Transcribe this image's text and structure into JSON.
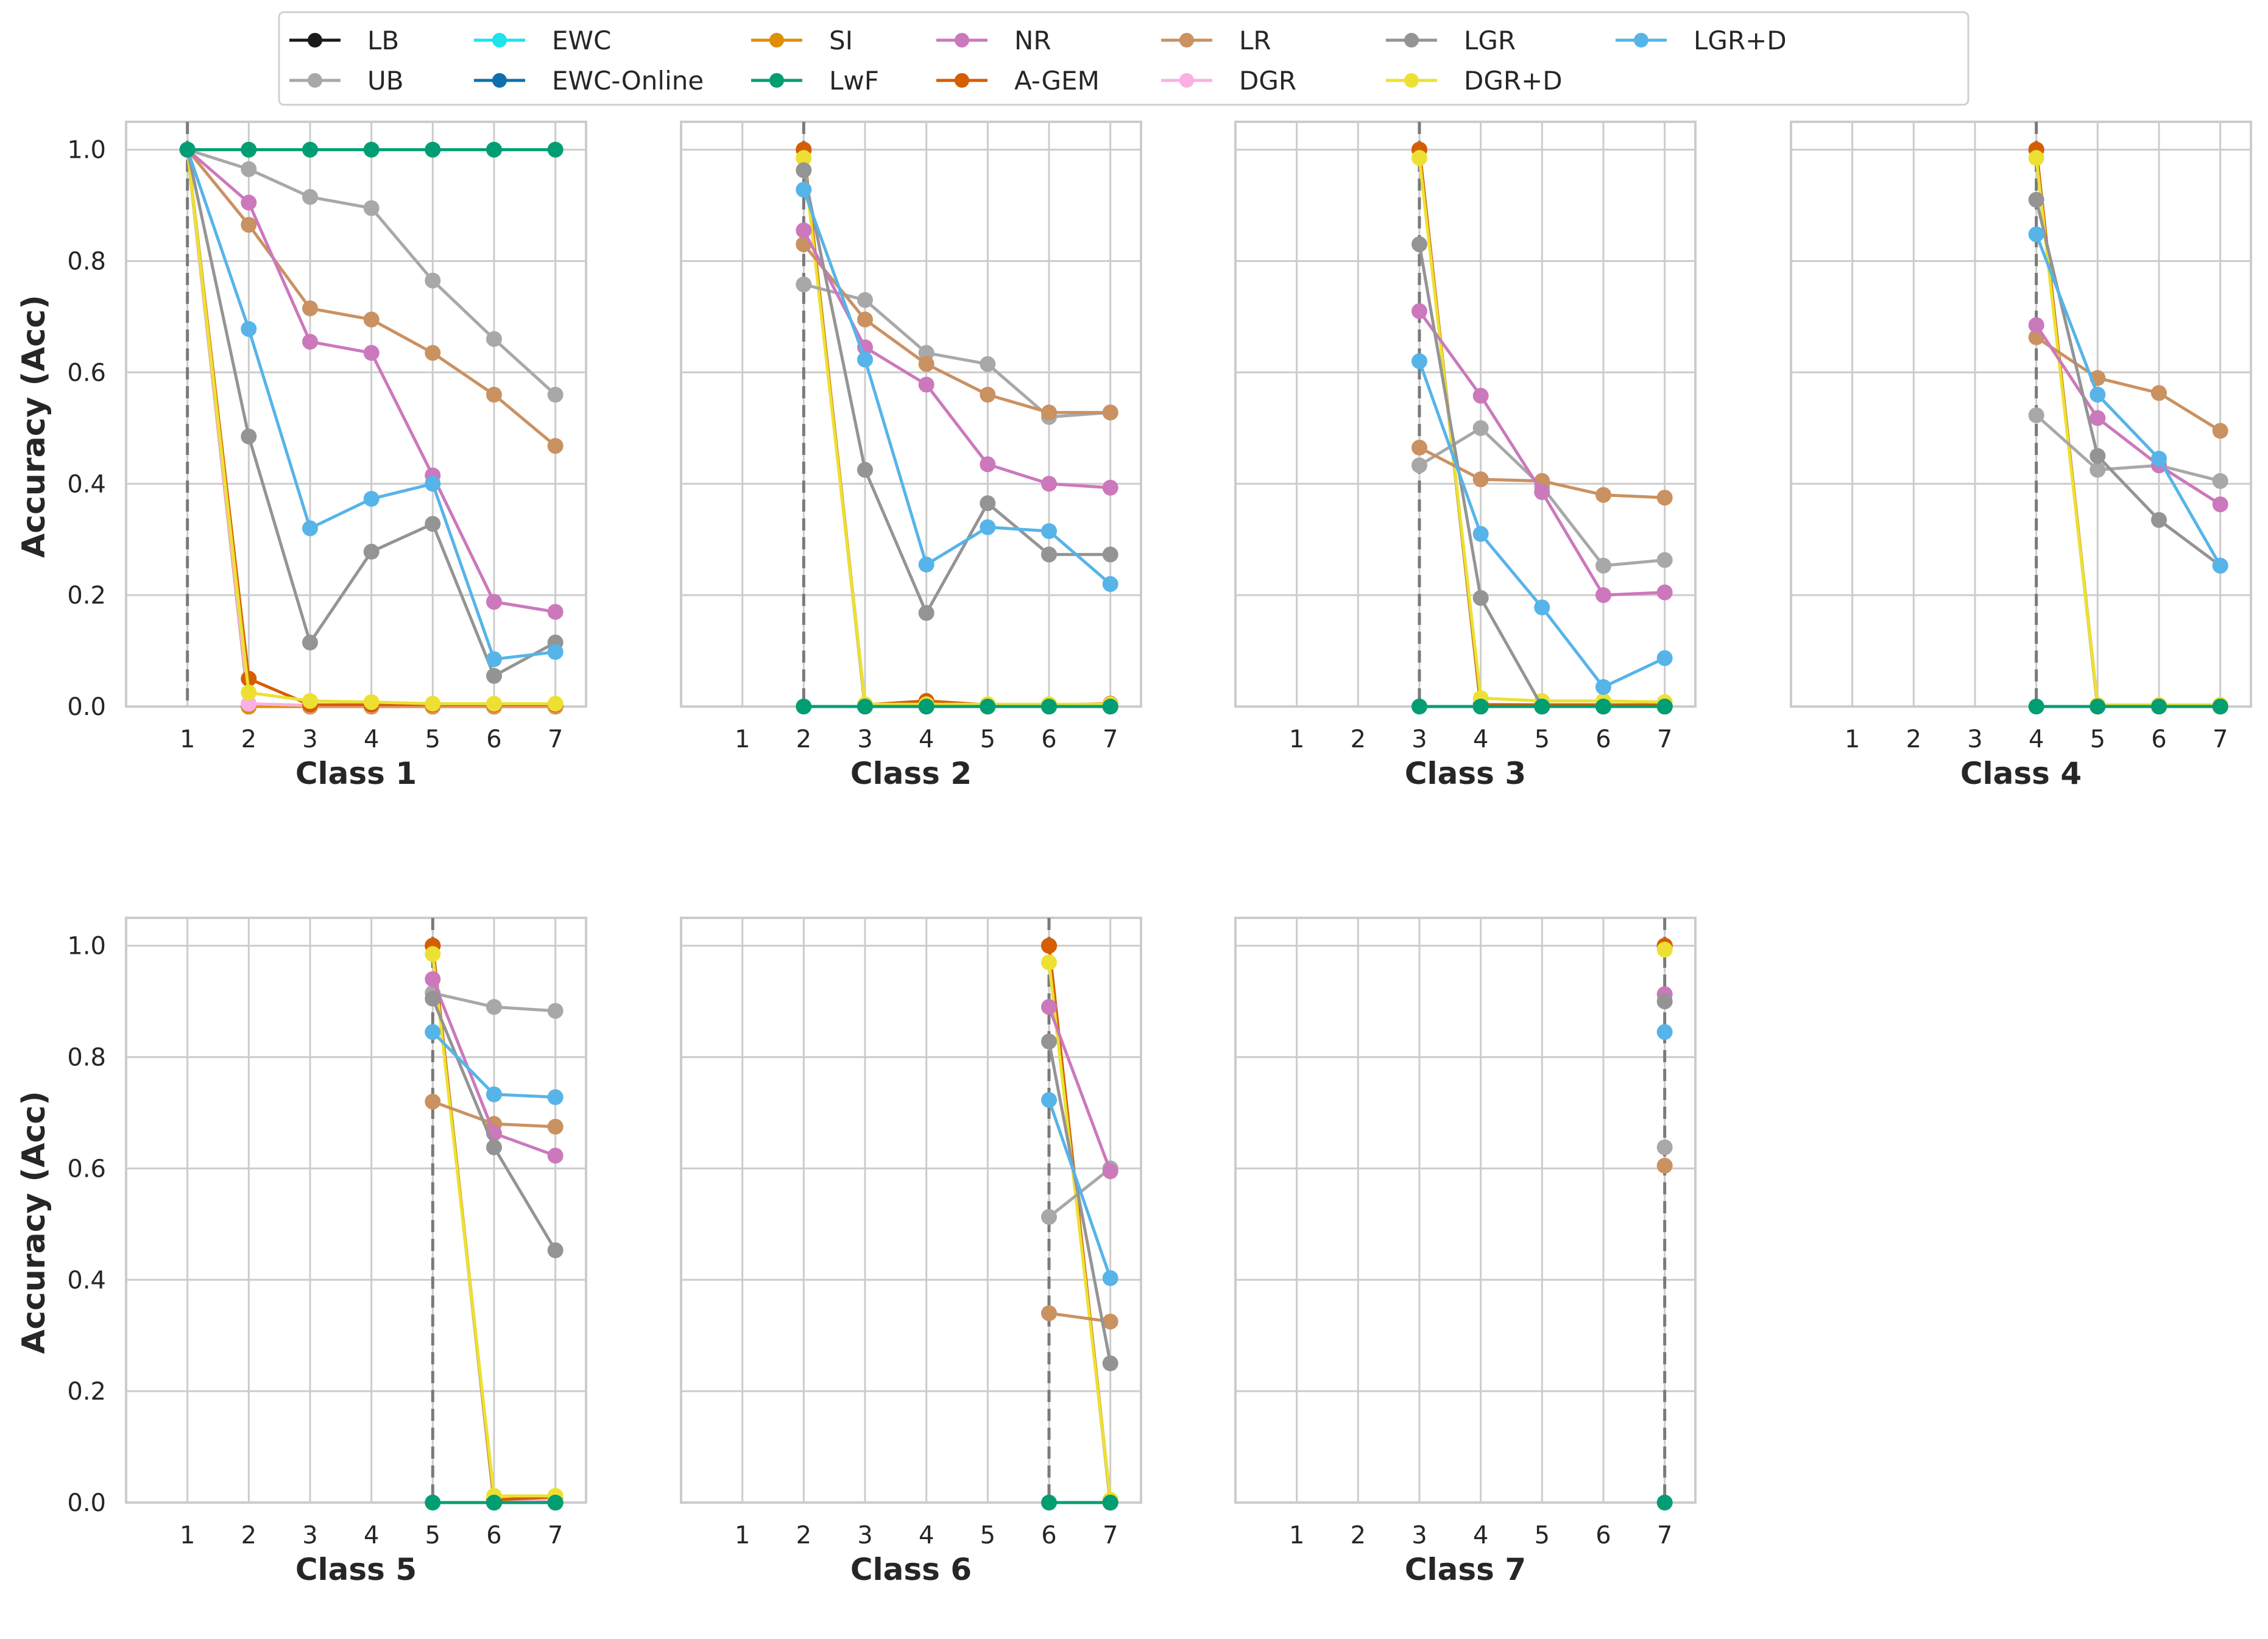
{
  "chart_data": {
    "type": "line",
    "ylabel": "Accuracy (Acc)",
    "x": [
      1,
      2,
      3,
      4,
      5,
      6,
      7
    ],
    "ylim": [
      0,
      1.05
    ],
    "yticks": [
      "0.0",
      "0.2",
      "0.4",
      "0.6",
      "0.8",
      "1.0"
    ],
    "grid": true,
    "legend_position": "top",
    "legend": [
      {
        "name": "LB",
        "color": "#1a1a1a"
      },
      {
        "name": "UB",
        "color": "#a8a8a8"
      },
      {
        "name": "EWC",
        "color": "#1ee3eb"
      },
      {
        "name": "EWC-Online",
        "color": "#0f6fad"
      },
      {
        "name": "SI",
        "color": "#de8f05"
      },
      {
        "name": "LwF",
        "color": "#029e73"
      },
      {
        "name": "NR",
        "color": "#cc78bc"
      },
      {
        "name": "A-GEM",
        "color": "#d55e00"
      },
      {
        "name": "LR",
        "color": "#ca9161"
      },
      {
        "name": "DGR",
        "color": "#fbafe4"
      },
      {
        "name": "LGR",
        "color": "#949494"
      },
      {
        "name": "DGR+D",
        "color": "#ece133"
      },
      {
        "name": "LGR+D",
        "color": "#56b4e9"
      }
    ],
    "panels": [
      {
        "title": "Class 1",
        "start": 1,
        "series": [
          {
            "name": "LB",
            "values": [
              1.0,
              0.0,
              0.0,
              0.0,
              0.0,
              0.0,
              0.0
            ]
          },
          {
            "name": "EWC",
            "values": [
              1.0,
              0.0,
              0.0,
              0.0,
              0.0,
              0.0,
              0.0
            ]
          },
          {
            "name": "EWC-Online",
            "values": [
              1.0,
              0.0,
              0.0,
              0.0,
              0.0,
              0.0,
              0.0
            ]
          },
          {
            "name": "SI",
            "values": [
              1.0,
              0.0,
              0.0,
              0.0,
              0.0,
              0.0,
              0.0
            ]
          },
          {
            "name": "DGR",
            "values": [
              1.0,
              0.005,
              0.002,
              0.002,
              0.002,
              0.002,
              0.002
            ]
          },
          {
            "name": "A-GEM",
            "values": [
              1.0,
              0.05,
              0.003,
              0.003,
              0.003,
              0.003,
              0.003
            ]
          },
          {
            "name": "DGR+D",
            "values": [
              1.0,
              0.025,
              0.01,
              0.008,
              0.005,
              0.005,
              0.005
            ]
          },
          {
            "name": "UB",
            "values": [
              1.0,
              0.965,
              0.915,
              0.895,
              0.765,
              0.66,
              0.56
            ]
          },
          {
            "name": "LR",
            "values": [
              1.0,
              0.865,
              0.715,
              0.695,
              0.635,
              0.56,
              0.468
            ]
          },
          {
            "name": "NR",
            "values": [
              1.0,
              0.905,
              0.655,
              0.635,
              0.415,
              0.188,
              0.17
            ]
          },
          {
            "name": "LGR",
            "values": [
              1.0,
              0.485,
              0.115,
              0.278,
              0.328,
              0.055,
              0.115
            ]
          },
          {
            "name": "LGR+D",
            "values": [
              1.0,
              0.678,
              0.32,
              0.373,
              0.4,
              0.085,
              0.098
            ]
          },
          {
            "name": "LwF",
            "values": [
              1.0,
              1.0,
              1.0,
              1.0,
              1.0,
              1.0,
              1.0
            ]
          }
        ]
      },
      {
        "title": "Class 2",
        "start": 2,
        "series": [
          {
            "name": "LB",
            "values": [
              1.0,
              0.0,
              0.0,
              0.0,
              0.0,
              0.0
            ]
          },
          {
            "name": "EWC",
            "values": [
              1.0,
              0.0,
              0.0,
              0.0,
              0.0,
              0.0
            ]
          },
          {
            "name": "EWC-Online",
            "values": [
              1.0,
              0.0,
              0.0,
              0.0,
              0.0,
              0.0
            ]
          },
          {
            "name": "SI",
            "values": [
              1.0,
              0.0,
              0.0,
              0.0,
              0.0,
              0.0
            ]
          },
          {
            "name": "DGR",
            "values": [
              1.0,
              0.003,
              0.003,
              0.003,
              0.003,
              0.003
            ]
          },
          {
            "name": "A-GEM",
            "values": [
              1.0,
              0.003,
              0.01,
              0.003,
              0.003,
              0.005
            ]
          },
          {
            "name": "DGR+D",
            "values": [
              0.985,
              0.004,
              0.004,
              0.004,
              0.004,
              0.004
            ]
          },
          {
            "name": "UB",
            "values": [
              0.758,
              0.73,
              0.635,
              0.615,
              0.52,
              0.528
            ]
          },
          {
            "name": "LR",
            "values": [
              0.83,
              0.695,
              0.615,
              0.56,
              0.528,
              0.528
            ]
          },
          {
            "name": "NR",
            "values": [
              0.855,
              0.645,
              0.578,
              0.435,
              0.4,
              0.393
            ]
          },
          {
            "name": "LGR",
            "values": [
              0.963,
              0.425,
              0.168,
              0.365,
              0.273,
              0.273
            ]
          },
          {
            "name": "LGR+D",
            "values": [
              0.928,
              0.623,
              0.255,
              0.322,
              0.315,
              0.22
            ]
          },
          {
            "name": "LwF",
            "values": [
              0.0,
              0.0,
              0.0,
              0.0,
              0.0,
              0.0
            ]
          }
        ]
      },
      {
        "title": "Class 3",
        "start": 3,
        "series": [
          {
            "name": "LB",
            "values": [
              1.0,
              0.0,
              0.0,
              0.0,
              0.0
            ]
          },
          {
            "name": "EWC",
            "values": [
              1.0,
              0.0,
              0.0,
              0.0,
              0.0
            ]
          },
          {
            "name": "EWC-Online",
            "values": [
              1.0,
              0.0,
              0.0,
              0.0,
              0.0
            ]
          },
          {
            "name": "SI",
            "values": [
              1.0,
              0.0,
              0.0,
              0.0,
              0.0
            ]
          },
          {
            "name": "DGR",
            "values": [
              1.0,
              0.004,
              0.003,
              0.003,
              0.003
            ]
          },
          {
            "name": "A-GEM",
            "values": [
              1.0,
              0.003,
              0.003,
              0.003,
              0.003
            ]
          },
          {
            "name": "DGR+D",
            "values": [
              0.985,
              0.015,
              0.01,
              0.01,
              0.008
            ]
          },
          {
            "name": "UB",
            "values": [
              0.433,
              0.5,
              0.395,
              0.253,
              0.263
            ]
          },
          {
            "name": "LR",
            "values": [
              0.465,
              0.408,
              0.405,
              0.38,
              0.375
            ]
          },
          {
            "name": "NR",
            "values": [
              0.71,
              0.558,
              0.385,
              0.2,
              0.205
            ]
          },
          {
            "name": "LGR",
            "values": [
              0.83,
              0.195,
              0.0,
              0.0,
              0.0
            ]
          },
          {
            "name": "LGR+D",
            "values": [
              0.62,
              0.31,
              0.178,
              0.035,
              0.087
            ]
          },
          {
            "name": "LwF",
            "values": [
              0.0,
              0.0,
              0.0,
              0.0,
              0.0
            ]
          }
        ]
      },
      {
        "title": "Class 4",
        "start": 4,
        "series": [
          {
            "name": "LB",
            "values": [
              1.0,
              0.0,
              0.0,
              0.0
            ]
          },
          {
            "name": "EWC",
            "values": [
              1.0,
              0.0,
              0.0,
              0.0
            ]
          },
          {
            "name": "EWC-Online",
            "values": [
              1.0,
              0.0,
              0.0,
              0.0
            ]
          },
          {
            "name": "SI",
            "values": [
              1.0,
              0.0,
              0.0,
              0.0
            ]
          },
          {
            "name": "DGR",
            "values": [
              1.0,
              0.002,
              0.002,
              0.002
            ]
          },
          {
            "name": "A-GEM",
            "values": [
              1.0,
              0.002,
              0.002,
              0.002
            ]
          },
          {
            "name": "DGR+D",
            "values": [
              0.985,
              0.003,
              0.003,
              0.003
            ]
          },
          {
            "name": "UB",
            "values": [
              0.523,
              0.425,
              0.433,
              0.405
            ]
          },
          {
            "name": "LR",
            "values": [
              0.663,
              0.59,
              0.563,
              0.495
            ]
          },
          {
            "name": "NR",
            "values": [
              0.685,
              0.518,
              0.433,
              0.363
            ]
          },
          {
            "name": "LGR",
            "values": [
              0.91,
              0.45,
              0.335,
              0.253
            ]
          },
          {
            "name": "LGR+D",
            "values": [
              0.848,
              0.56,
              0.445,
              0.253
            ]
          },
          {
            "name": "LwF",
            "values": [
              0.0,
              0.0,
              0.0,
              0.0
            ]
          }
        ]
      },
      {
        "title": "Class 5",
        "start": 5,
        "series": [
          {
            "name": "LB",
            "values": [
              1.0,
              0.0,
              0.0
            ]
          },
          {
            "name": "EWC",
            "values": [
              1.0,
              0.0,
              0.0
            ]
          },
          {
            "name": "EWC-Online",
            "values": [
              1.0,
              0.0,
              0.0
            ]
          },
          {
            "name": "SI",
            "values": [
              1.0,
              0.0,
              0.0
            ]
          },
          {
            "name": "DGR",
            "values": [
              1.0,
              0.003,
              0.003
            ]
          },
          {
            "name": "A-GEM",
            "values": [
              1.0,
              0.005,
              0.01
            ]
          },
          {
            "name": "DGR+D",
            "values": [
              0.985,
              0.012,
              0.012
            ]
          },
          {
            "name": "UB",
            "values": [
              0.915,
              0.89,
              0.883
            ]
          },
          {
            "name": "LR",
            "values": [
              0.72,
              0.68,
              0.675
            ]
          },
          {
            "name": "NR",
            "values": [
              0.94,
              0.663,
              0.623
            ]
          },
          {
            "name": "LGR",
            "values": [
              0.905,
              0.638,
              0.453
            ]
          },
          {
            "name": "LGR+D",
            "values": [
              0.845,
              0.733,
              0.728
            ]
          },
          {
            "name": "LwF",
            "values": [
              0.0,
              0.0,
              0.0
            ]
          }
        ]
      },
      {
        "title": "Class 6",
        "start": 6,
        "series": [
          {
            "name": "LB",
            "values": [
              1.0,
              0.0
            ]
          },
          {
            "name": "EWC",
            "values": [
              1.0,
              0.0
            ]
          },
          {
            "name": "EWC-Online",
            "values": [
              1.0,
              0.0
            ]
          },
          {
            "name": "SI",
            "values": [
              1.0,
              0.0
            ]
          },
          {
            "name": "DGR",
            "values": [
              1.0,
              0.003
            ]
          },
          {
            "name": "A-GEM",
            "values": [
              1.0,
              0.003
            ]
          },
          {
            "name": "DGR+D",
            "values": [
              0.97,
              0.005
            ]
          },
          {
            "name": "UB",
            "values": [
              0.513,
              0.6
            ]
          },
          {
            "name": "LR",
            "values": [
              0.34,
              0.325
            ]
          },
          {
            "name": "NR",
            "values": [
              0.89,
              0.595
            ]
          },
          {
            "name": "LGR",
            "values": [
              0.828,
              0.25
            ]
          },
          {
            "name": "LGR+D",
            "values": [
              0.723,
              0.403
            ]
          },
          {
            "name": "LwF",
            "values": [
              0.0,
              0.0
            ]
          }
        ]
      },
      {
        "title": "Class 7",
        "start": 7,
        "series": [
          {
            "name": "LB",
            "values": [
              1.0
            ]
          },
          {
            "name": "EWC",
            "values": [
              1.0
            ]
          },
          {
            "name": "EWC-Online",
            "values": [
              1.0
            ]
          },
          {
            "name": "SI",
            "values": [
              1.0
            ]
          },
          {
            "name": "DGR",
            "values": [
              1.0
            ]
          },
          {
            "name": "A-GEM",
            "values": [
              1.0
            ]
          },
          {
            "name": "DGR+D",
            "values": [
              0.993
            ]
          },
          {
            "name": "UB",
            "values": [
              0.638
            ]
          },
          {
            "name": "LR",
            "values": [
              0.605
            ]
          },
          {
            "name": "NR",
            "values": [
              0.913
            ]
          },
          {
            "name": "LGR",
            "values": [
              0.9
            ]
          },
          {
            "name": "LGR+D",
            "values": [
              0.845
            ]
          },
          {
            "name": "LwF",
            "values": [
              0.0
            ]
          }
        ]
      }
    ]
  }
}
